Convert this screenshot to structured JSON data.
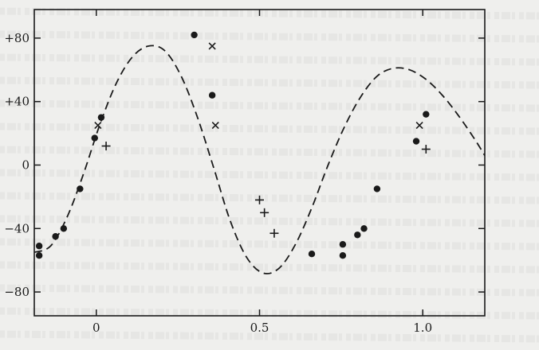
{
  "chart_data": {
    "type": "scatter",
    "title": "",
    "xlabel": "",
    "ylabel": "",
    "xlim": [
      -0.19,
      1.19
    ],
    "ylim": [
      -95,
      98
    ],
    "x_ticks": [
      0,
      0.5,
      1.0
    ],
    "x_tick_labels": [
      "0",
      "0.5",
      "1.0"
    ],
    "y_ticks": [
      80,
      40,
      0,
      -40,
      -80
    ],
    "y_tick_labels": [
      "+80",
      "+40",
      "0",
      "−40",
      "−80"
    ],
    "grid": false,
    "legend": "none",
    "series": [
      {
        "marker": "filled-circle",
        "color": "#1a1a1a",
        "x": [
          -0.175,
          -0.175,
          -0.125,
          -0.1,
          -0.05,
          -0.005,
          0.015,
          0.3,
          0.355,
          0.66,
          0.755,
          0.755,
          0.8,
          0.82,
          0.86,
          0.98,
          1.01
        ],
        "y": [
          -51,
          -57,
          -45,
          -40,
          -15,
          17,
          30,
          82,
          44,
          -56,
          -50,
          -57,
          -44,
          -40,
          -15,
          15,
          32
        ]
      },
      {
        "marker": "cross",
        "color": "#1a1a1a",
        "x": [
          0.005,
          0.355,
          0.365,
          0.99
        ],
        "y": [
          25,
          75,
          25,
          25
        ]
      },
      {
        "marker": "plus",
        "color": "#1a1a1a",
        "x": [
          0.03,
          0.5,
          0.515,
          0.545,
          1.01
        ],
        "y": [
          12,
          -22,
          -30,
          -43,
          10
        ]
      },
      {
        "marker": "none",
        "line": "dashed",
        "color": "#1a1a1a",
        "x": [
          -0.19,
          -0.14,
          -0.09,
          -0.04,
          0.01,
          0.06,
          0.11,
          0.16,
          0.21,
          0.26,
          0.31,
          0.36,
          0.41,
          0.46,
          0.51,
          0.56,
          0.61,
          0.66,
          0.71,
          0.76,
          0.81,
          0.86,
          0.91,
          0.96,
          1.01,
          1.06,
          1.11,
          1.16,
          1.19
        ],
        "y": [
          -55,
          -51,
          -33,
          -6,
          25,
          51,
          68,
          75,
          72,
          56,
          30,
          -2,
          -35,
          -58,
          -68,
          -65,
          -50,
          -27,
          0,
          24,
          43,
          56,
          61,
          60,
          54,
          44,
          31,
          16,
          6
        ]
      }
    ]
  }
}
